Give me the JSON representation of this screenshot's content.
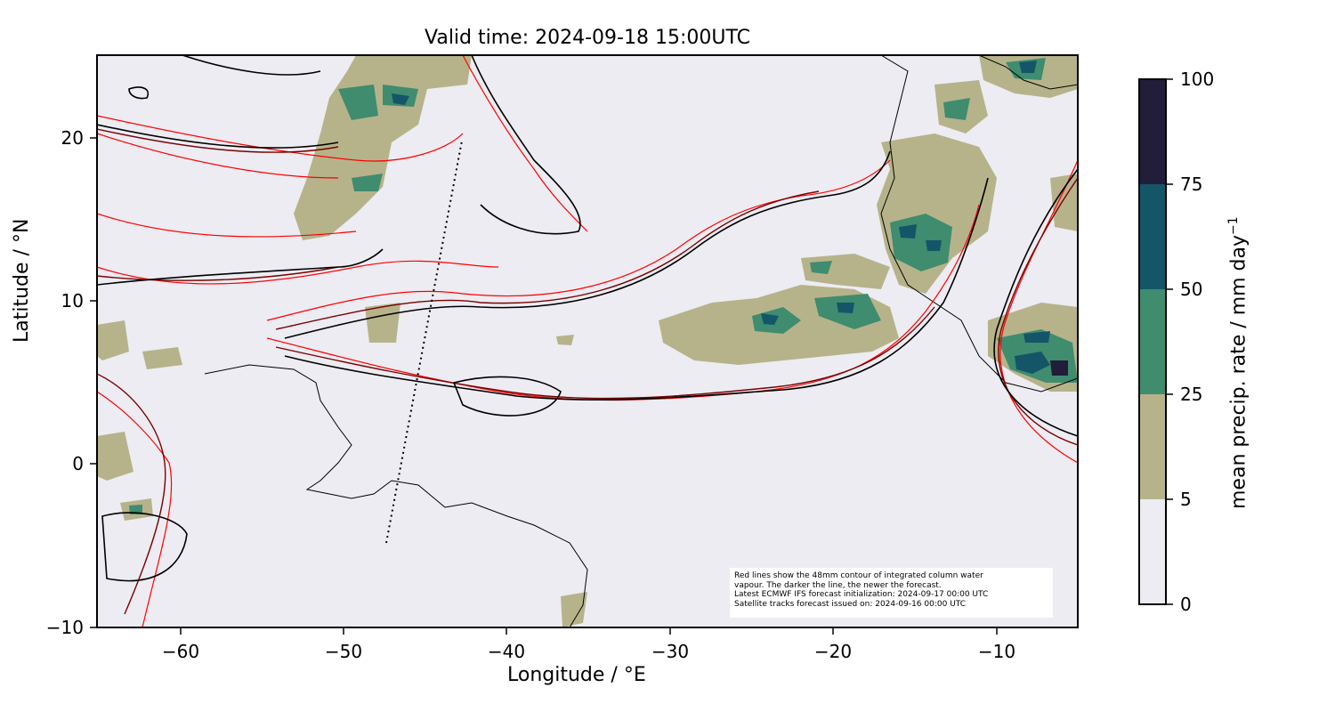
{
  "map": {
    "title": "Valid time: 2024-09-18 15:00UTC",
    "xlabel": "Longitude / °E",
    "ylabel": "Latitude / °N",
    "x_ticks": [
      "−60",
      "−50",
      "−40",
      "−30",
      "−20",
      "−10"
    ],
    "y_ticks": [
      "20",
      "10",
      "0",
      "−10"
    ],
    "extent": {
      "lon": [
        -65,
        -5
      ],
      "lat": [
        -10,
        25
      ]
    },
    "background_color": "#ececf2",
    "annotation": [
      "Red lines show the 48mm contour of integrated column water",
      "vapour. The darker the line, the newer the forecast.",
      "Latest ECMWF IFS forecast initialization: 2024-09-17 00:00 UTC",
      "Satellite tracks forecast issued on: 2024-09-16 00:00 UTC"
    ],
    "satellite_track": "dotted-line",
    "contour_colors": [
      "#ff0000",
      "#c00000",
      "#7a0000",
      "#000000"
    ]
  },
  "colorbar": {
    "label": "mean precip. rate / mm day",
    "label_exponent": "−1",
    "ticks": [
      "0",
      "5",
      "25",
      "50",
      "75",
      "100"
    ],
    "bins": [
      {
        "from": 0,
        "to": 5,
        "color": "#ececf2"
      },
      {
        "from": 5,
        "to": 25,
        "color": "#b6b38a"
      },
      {
        "from": 25,
        "to": 50,
        "color": "#3f8c6f"
      },
      {
        "from": 50,
        "to": 75,
        "color": "#155568"
      },
      {
        "from": 75,
        "to": 100,
        "color": "#221d39"
      }
    ]
  }
}
